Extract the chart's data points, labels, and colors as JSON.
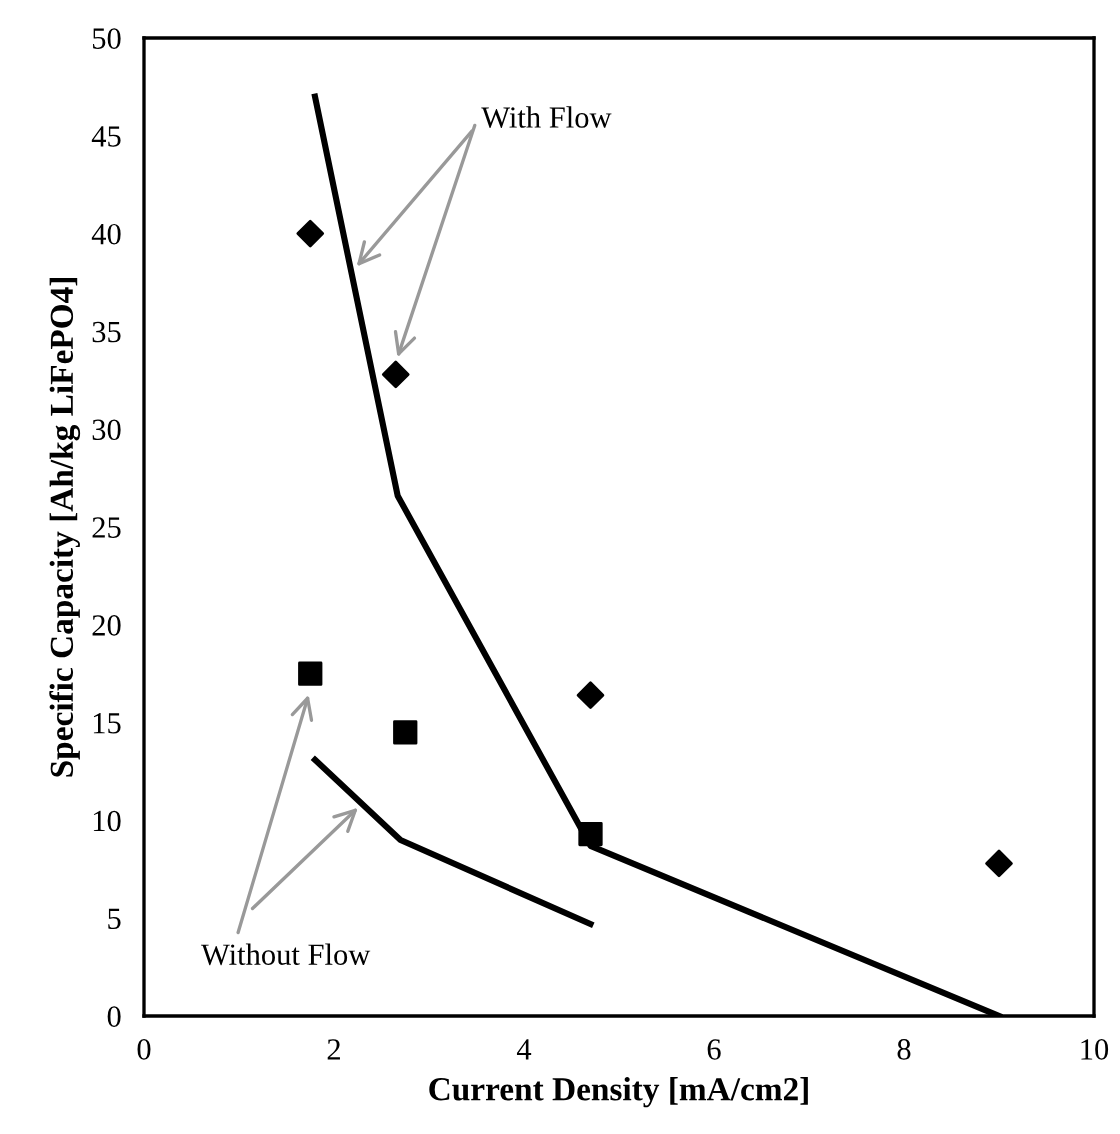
{
  "chart_data": {
    "type": "scatter",
    "xlabel": "Current Density [mA/cm2]",
    "ylabel": "Specific Capacity [Ah/kg LiFePO4]",
    "xlim": [
      0,
      10
    ],
    "xticks": [
      0,
      2,
      4,
      6,
      8,
      10
    ],
    "ylim": [
      0,
      50
    ],
    "yticks": [
      0,
      5,
      10,
      15,
      20,
      25,
      30,
      35,
      40,
      45,
      50
    ],
    "grid": false,
    "legend": false,
    "series": [
      {
        "marker": "diamond",
        "color": "#000000",
        "x": [
          1.75,
          2.65,
          4.7,
          9.0
        ],
        "values": [
          40.0,
          32.8,
          16.4,
          7.8
        ]
      },
      {
        "marker": "square",
        "color": "#000000",
        "x": [
          1.75,
          2.75,
          4.7
        ],
        "values": [
          17.5,
          14.5,
          9.3
        ]
      },
      {
        "type": "line",
        "marker": "none",
        "line_style": "solid",
        "color": "#000000",
        "x": [
          1.8,
          2.67,
          4.7,
          9.0
        ],
        "values": [
          47.0,
          26.6,
          8.7,
          0.0
        ]
      },
      {
        "type": "line",
        "marker": "none",
        "line_style": "solid",
        "color": "#000000",
        "x": [
          1.8,
          2.7,
          4.7
        ],
        "values": [
          13.1,
          9.0,
          4.7
        ]
      }
    ],
    "annotations": [
      {
        "text": "With Flow",
        "x": 2.2,
        "y": 38.1
      },
      {
        "text": "Without Flow",
        "x": 1.75,
        "y": 16.7
      }
    ]
  }
}
